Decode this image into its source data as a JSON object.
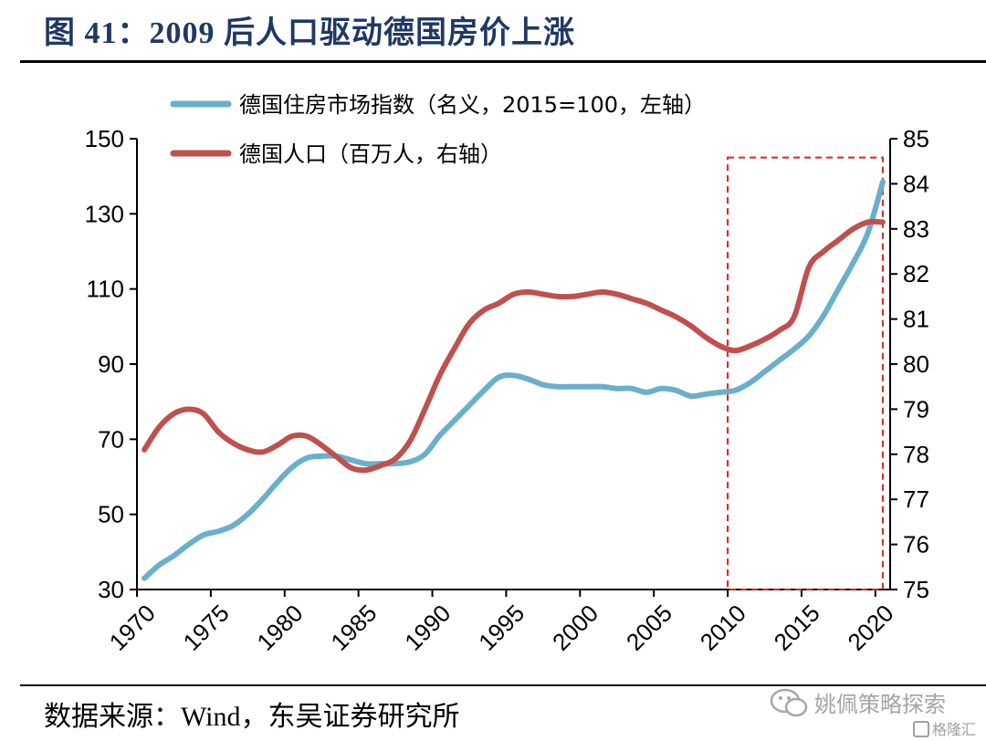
{
  "header": {
    "title": "图 41：2009 后人口驱动德国房价上涨"
  },
  "footer": {
    "source": "数据来源：Wind，东吴证券研究所"
  },
  "watermark": {
    "text": "姚佩策略探索",
    "text2": "格隆汇"
  },
  "chart_data": {
    "type": "line",
    "xlim": [
      1970,
      2021
    ],
    "x_ticks": [
      "1970",
      "1975",
      "1980",
      "1985",
      "1990",
      "1995",
      "2000",
      "2005",
      "2010",
      "2015",
      "2020"
    ],
    "y_left": {
      "lim": [
        30,
        150
      ],
      "ticks": [
        "30",
        "50",
        "70",
        "90",
        "110",
        "130",
        "150"
      ]
    },
    "y_right": {
      "lim": [
        75,
        85
      ],
      "ticks": [
        "75",
        "76",
        "77",
        "78",
        "79",
        "80",
        "81",
        "82",
        "83",
        "84",
        "85"
      ]
    },
    "series": [
      {
        "name": "德国住房市场指数（名义，2015=100，左轴）",
        "axis": "left",
        "color": "#6aafcb",
        "x": [
          1970.5,
          1971.5,
          1972.5,
          1973.5,
          1974.5,
          1975.5,
          1976.5,
          1977.5,
          1978.5,
          1979.5,
          1980.5,
          1981.5,
          1982.5,
          1983.5,
          1984.5,
          1985.5,
          1986.5,
          1987.5,
          1988.5,
          1989.5,
          1990.5,
          1991.5,
          1992.5,
          1993.5,
          1994.5,
          1995.5,
          1996.5,
          1997.5,
          1998.5,
          1999.5,
          2000.5,
          2001.5,
          2002.5,
          2003.5,
          2004.5,
          2005.5,
          2006.5,
          2007.5,
          2008.5,
          2009.5,
          2010.5,
          2011.5,
          2012.5,
          2013.5,
          2014.5,
          2015.5,
          2016.5,
          2017.5,
          2018.5,
          2019.5,
          2020.5
        ],
        "values": [
          33,
          36.5,
          39,
          42,
          44.5,
          45.5,
          47,
          50,
          54,
          58.5,
          62.5,
          65,
          65.5,
          65.5,
          64.5,
          63.5,
          63.5,
          63.5,
          64,
          66,
          71,
          75,
          79,
          83,
          86.5,
          87,
          86,
          84.5,
          84,
          84,
          84,
          84,
          83.5,
          83.5,
          82.5,
          83.5,
          83,
          81.5,
          82,
          82.5,
          83,
          85,
          88,
          91,
          94,
          97.5,
          103,
          110,
          117,
          125,
          138.5
        ]
      },
      {
        "name": "德国人口（百万人，右轴）",
        "axis": "right",
        "color": "#c0504d",
        "x": [
          1970.5,
          1971.5,
          1972.5,
          1973.5,
          1974.5,
          1975.5,
          1976.5,
          1977.5,
          1978.5,
          1979.5,
          1980.5,
          1981.5,
          1982.5,
          1983.5,
          1984.5,
          1985.5,
          1986.5,
          1987.5,
          1988.5,
          1989.5,
          1990.5,
          1991.5,
          1992.5,
          1993.5,
          1994.5,
          1995.5,
          1996.5,
          1997.5,
          1998.5,
          1999.5,
          2000.5,
          2001.5,
          2002.5,
          2003.5,
          2004.5,
          2005.5,
          2006.5,
          2007.5,
          2008.5,
          2009.5,
          2010.5,
          2011.5,
          2012.5,
          2013.5,
          2014.5,
          2015.5,
          2016.5,
          2017.5,
          2018.5,
          2019.5,
          2020.5
        ],
        "values": [
          78.1,
          78.6,
          78.9,
          79.0,
          78.9,
          78.5,
          78.25,
          78.1,
          78.05,
          78.2,
          78.4,
          78.4,
          78.2,
          77.95,
          77.7,
          77.65,
          77.75,
          77.9,
          78.3,
          79.0,
          79.75,
          80.35,
          80.9,
          81.2,
          81.35,
          81.55,
          81.6,
          81.55,
          81.5,
          81.5,
          81.55,
          81.6,
          81.55,
          81.45,
          81.35,
          81.2,
          81.05,
          80.85,
          80.6,
          80.4,
          80.3,
          80.4,
          80.55,
          80.75,
          81.05,
          82.15,
          82.5,
          82.75,
          83.0,
          83.15,
          83.15
        ]
      }
    ],
    "highlight_box": {
      "x": [
        2010,
        2020.5
      ],
      "y_left": [
        30,
        145
      ]
    }
  }
}
